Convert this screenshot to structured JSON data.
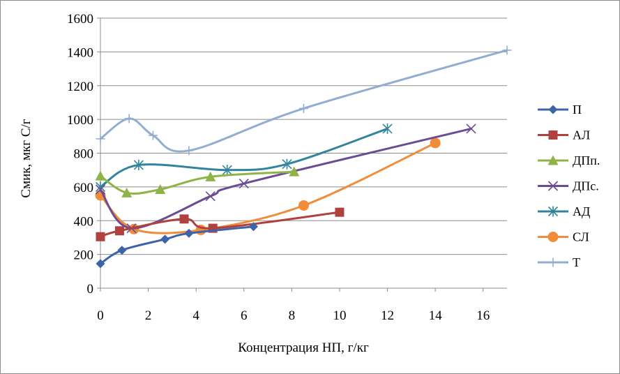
{
  "chart_data": {
    "type": "scatter",
    "title": "",
    "xlabel": "Концентрация НП, г/кг",
    "ylabel": "Смик, мкг С/г",
    "xlim": [
      0,
      17
    ],
    "ylim": [
      0,
      1600
    ],
    "xticks": [
      0,
      2,
      4,
      6,
      8,
      10,
      12,
      14,
      16
    ],
    "yticks": [
      0,
      200,
      400,
      600,
      800,
      1000,
      1200,
      1400,
      1600
    ],
    "grid": "horizontal",
    "legend_position": "right",
    "smooth_lines": true,
    "series": [
      {
        "name": "П",
        "color": "#3c64a8",
        "marker": "diamond",
        "x": [
          0,
          0.9,
          2.7,
          3.7,
          6.4
        ],
        "y": [
          145,
          225,
          290,
          325,
          365
        ]
      },
      {
        "name": "АЛ",
        "color": "#b0413e",
        "marker": "square",
        "x": [
          0,
          0.8,
          3.5,
          4.7,
          10
        ],
        "y": [
          305,
          340,
          410,
          355,
          450
        ]
      },
      {
        "name": "ДПп.",
        "color": "#90b348",
        "marker": "triangle",
        "x": [
          0,
          1.1,
          2.5,
          4.6,
          8.1
        ],
        "y": [
          665,
          565,
          585,
          660,
          690
        ]
      },
      {
        "name": "ДПс.",
        "color": "#6a4c93",
        "marker": "x",
        "x": [
          0,
          1.3,
          4.6,
          6,
          15.5
        ],
        "y": [
          585,
          355,
          545,
          620,
          945
        ]
      },
      {
        "name": "АД",
        "color": "#31849b",
        "marker": "asterisk",
        "x": [
          0,
          1.6,
          5.3,
          7.8,
          12
        ],
        "y": [
          600,
          730,
          700,
          735,
          945
        ]
      },
      {
        "name": "СЛ",
        "color": "#f08c3a",
        "marker": "circle",
        "x": [
          0,
          1.4,
          4.2,
          8.5,
          14
        ],
        "y": [
          550,
          350,
          345,
          490,
          860
        ]
      },
      {
        "name": "Т",
        "color": "#93add1",
        "marker": "plus",
        "x": [
          0,
          1.2,
          2.2,
          3.7,
          8.5,
          17
        ],
        "y": [
          885,
          1005,
          905,
          815,
          1065,
          1410
        ]
      }
    ]
  }
}
